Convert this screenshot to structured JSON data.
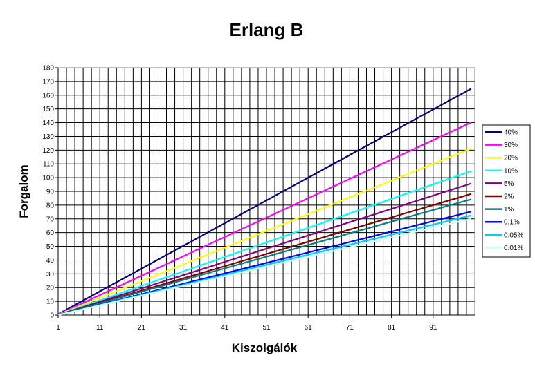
{
  "chart_data": {
    "type": "line",
    "title": "Erlang B",
    "xlabel": "Kiszolgálók",
    "ylabel": "Forgalom",
    "x_range": [
      1,
      100
    ],
    "ylim": [
      0,
      180
    ],
    "x_ticks": [
      "1",
      "11",
      "21",
      "31",
      "41",
      "51",
      "61",
      "71",
      "81",
      "91"
    ],
    "y_ticks": [
      "0",
      "10",
      "20",
      "30",
      "40",
      "50",
      "60",
      "70",
      "80",
      "90",
      "100",
      "110",
      "120",
      "130",
      "140",
      "150",
      "160",
      "170",
      "180"
    ],
    "grid": true,
    "legend_position": "right",
    "plot_background": "#ffffff",
    "series": [
      {
        "name": "40%",
        "color": "#000080",
        "x": [
          1,
          100
        ],
        "y": [
          0.667,
          164.5
        ]
      },
      {
        "name": "30%",
        "color": "#ff00ff",
        "x": [
          1,
          100
        ],
        "y": [
          0.429,
          140.0
        ]
      },
      {
        "name": "20%",
        "color": "#ffff00",
        "x": [
          1,
          100
        ],
        "y": [
          0.25,
          121.0
        ]
      },
      {
        "name": "10%",
        "color": "#00ffff",
        "x": [
          1,
          100
        ],
        "y": [
          0.111,
          104.6
        ]
      },
      {
        "name": "5%",
        "color": "#800080",
        "x": [
          1,
          100
        ],
        "y": [
          0.053,
          95.6
        ]
      },
      {
        "name": "2%",
        "color": "#800000",
        "x": [
          1,
          100
        ],
        "y": [
          0.02,
          88.0
        ]
      },
      {
        "name": "1%",
        "color": "#008080",
        "x": [
          1,
          100
        ],
        "y": [
          0.01,
          84.1
        ]
      },
      {
        "name": "0.1%",
        "color": "#0000ff",
        "x": [
          1,
          100
        ],
        "y": [
          0.001,
          75.2
        ]
      },
      {
        "name": "0.05%",
        "color": "#00ccff",
        "x": [
          1,
          100
        ],
        "y": [
          0.0005,
          72.4
        ]
      },
      {
        "name": "0.01%",
        "color": "#ccffff",
        "x": [
          1,
          100
        ],
        "y": [
          0.0001,
          69.9
        ]
      }
    ]
  }
}
